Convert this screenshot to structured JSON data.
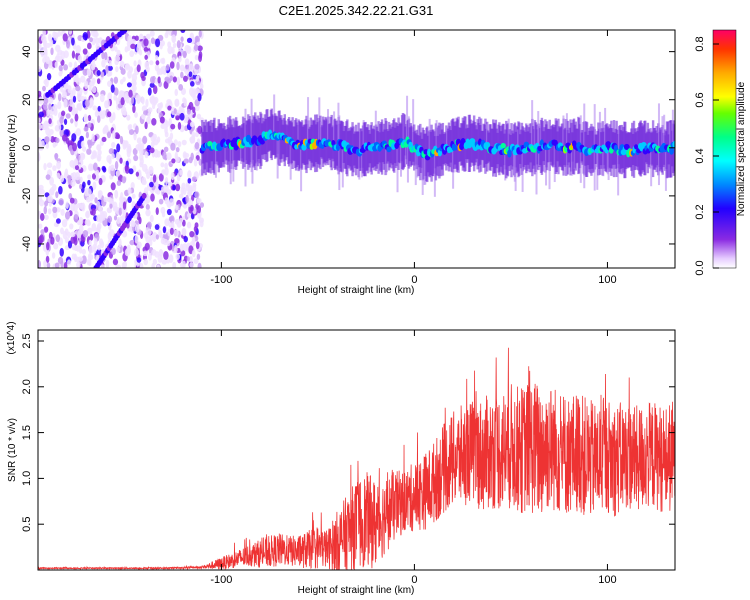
{
  "chart_data": [
    {
      "type": "heatmap",
      "title": "C2E1.2025.342.22.21.G31",
      "xlabel": "Height of straight line (km)",
      "ylabel": "Frequency (Hz)",
      "xlim": [
        -195,
        135
      ],
      "ylim": [
        -50,
        49
      ],
      "xticks": [
        -100,
        0,
        100
      ],
      "yticks": [
        -40,
        -20,
        0,
        20,
        40
      ],
      "colorbar": {
        "label": "Normalized spectral amplitude",
        "range": [
          0.0,
          0.85
        ],
        "ticks": [
          0.0,
          0.2,
          0.4,
          0.6,
          0.8
        ],
        "tick_labels": [
          "0.0",
          "0.2",
          "0.4",
          "0.6",
          "0.8"
        ]
      },
      "features": {
        "noise_region_x": [
          -195,
          -110
        ],
        "signal_ridge": {
          "x": [
            -110,
            -100,
            -90,
            -80,
            -75,
            -70,
            -60,
            -50,
            -45,
            -40,
            -30,
            -20,
            -10,
            -5,
            0,
            5,
            10,
            20,
            30,
            40,
            50,
            60,
            70,
            80,
            85,
            90,
            100,
            110,
            120,
            130,
            135
          ],
          "freq_hz": [
            0,
            1,
            2,
            3,
            6,
            4,
            1,
            2,
            3,
            1,
            -1,
            0,
            1,
            3,
            0,
            -3,
            -2,
            1,
            2,
            0,
            -1,
            0,
            1,
            0,
            1,
            -1,
            0,
            -1,
            0,
            -1,
            0
          ]
        }
      }
    },
    {
      "type": "line",
      "title": "",
      "xlabel": "Height of straight line (km)",
      "ylabel": "SNR (10 * v/v)",
      "y_multiplier": "(x10^4)",
      "xlim": [
        -195,
        135
      ],
      "ylim": [
        0.0,
        2.62
      ],
      "xticks": [
        -100,
        0,
        100
      ],
      "yticks": [
        0.5,
        1.0,
        1.5,
        2.0,
        2.5
      ],
      "ytick_labels": [
        "0.5",
        "1.0",
        "1.5",
        "2.0",
        "2.5"
      ],
      "color": "#ee3333",
      "series": [
        {
          "name": "SNR",
          "x": [
            -195,
            -170,
            -150,
            -130,
            -110,
            -100,
            -95,
            -90,
            -85,
            -80,
            -75,
            -70,
            -65,
            -60,
            -55,
            -50,
            -45,
            -40,
            -35,
            -30,
            -25,
            -20,
            -15,
            -10,
            -5,
            0,
            5,
            10,
            15,
            20,
            25,
            30,
            35,
            40,
            45,
            50,
            55,
            60,
            65,
            70,
            75,
            80,
            85,
            90,
            95,
            100,
            105,
            110,
            115,
            120,
            125,
            130,
            135
          ],
          "base": [
            0.02,
            0.02,
            0.02,
            0.02,
            0.03,
            0.07,
            0.1,
            0.13,
            0.16,
            0.18,
            0.2,
            0.22,
            0.21,
            0.2,
            0.22,
            0.25,
            0.23,
            0.3,
            0.4,
            0.5,
            0.55,
            0.5,
            0.6,
            0.7,
            0.75,
            0.8,
            0.85,
            0.95,
            1.1,
            1.2,
            1.25,
            1.3,
            1.25,
            1.3,
            1.3,
            1.35,
            1.3,
            1.35,
            1.3,
            1.35,
            1.3,
            1.25,
            1.3,
            1.2,
            1.2,
            1.25,
            1.2,
            1.25,
            1.2,
            1.25,
            1.25,
            1.2,
            1.25
          ],
          "spread": [
            0.01,
            0.01,
            0.01,
            0.01,
            0.02,
            0.1,
            0.12,
            0.15,
            0.18,
            0.22,
            0.25,
            0.26,
            0.24,
            0.25,
            0.3,
            0.35,
            0.3,
            0.5,
            0.6,
            0.7,
            0.75,
            0.7,
            0.6,
            0.55,
            0.5,
            0.55,
            0.6,
            0.65,
            0.7,
            0.75,
            0.8,
            0.8,
            0.9,
            0.9,
            0.95,
            1.0,
            1.0,
            1.05,
            1.1,
            1.0,
            1.0,
            0.95,
            0.95,
            0.95,
            0.9,
            0.9,
            0.9,
            0.85,
            0.85,
            0.85,
            0.85,
            0.85,
            0.9
          ]
        }
      ]
    }
  ]
}
